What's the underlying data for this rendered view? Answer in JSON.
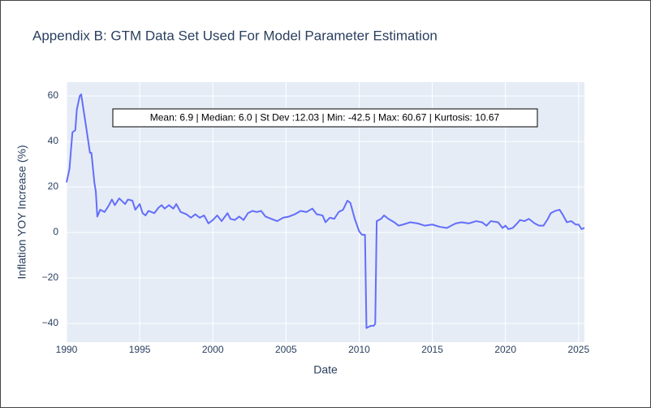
{
  "chart_data": {
    "type": "line",
    "title": "Appendix B: GTM Data Set Used For Model Parameter Estimation",
    "x_label": "Date",
    "y_label": "Inflation YOY Increase (%)",
    "annotation": "Mean: 6.9 | Median: 6.0 | St Dev :12.03 | Min: -42.5 | Max: 60.67 | Kurtosis: 10.67",
    "xlim": [
      1990,
      2025.4
    ],
    "ylim": [
      -48.2,
      66.1
    ],
    "xticks": [
      1990,
      1995,
      2000,
      2005,
      2010,
      2015,
      2020,
      2025
    ],
    "yticks": [
      {
        "value": -40,
        "label": "−40"
      },
      {
        "value": -20,
        "label": "−20"
      },
      0,
      20,
      40,
      60
    ],
    "grid": true,
    "series": [
      {
        "name": "Inflation YOY Increase (%)",
        "color": "#636efa",
        "x": [
          1990.0,
          1990.2,
          1990.4,
          1990.6,
          1990.7,
          1990.9,
          1991.0,
          1991.3,
          1991.6,
          1991.7,
          1991.9,
          1992.0,
          1992.1,
          1992.3,
          1992.6,
          1992.9,
          1993.1,
          1993.3,
          1993.6,
          1994.0,
          1994.2,
          1994.5,
          1994.7,
          1995.0,
          1995.2,
          1995.4,
          1995.6,
          1996.0,
          1996.3,
          1996.5,
          1996.7,
          1997.0,
          1997.3,
          1997.5,
          1997.8,
          1998.2,
          1998.5,
          1998.8,
          1999.1,
          1999.4,
          1999.7,
          2000.0,
          2000.3,
          2000.6,
          2001.0,
          2001.2,
          2001.5,
          2001.8,
          2002.1,
          2002.4,
          2002.7,
          2003.0,
          2003.3,
          2003.6,
          2004.0,
          2004.4,
          2004.8,
          2005.2,
          2005.6,
          2006.0,
          2006.4,
          2006.8,
          2007.1,
          2007.5,
          2007.7,
          2008.0,
          2008.3,
          2008.6,
          2008.9,
          2009.2,
          2009.4,
          2009.7,
          2010.0,
          2010.2,
          2010.4,
          2010.5,
          2010.8,
          2011.0,
          2011.1,
          2011.2,
          2011.5,
          2011.7,
          2012.0,
          2012.4,
          2012.7,
          2013.0,
          2013.5,
          2014.0,
          2014.5,
          2015.0,
          2015.5,
          2016.0,
          2016.3,
          2016.6,
          2017.0,
          2017.5,
          2018.0,
          2018.4,
          2018.7,
          2019.0,
          2019.5,
          2019.8,
          2020.0,
          2020.2,
          2020.5,
          2020.8,
          2021.0,
          2021.3,
          2021.6,
          2022.0,
          2022.3,
          2022.6,
          2022.9,
          2023.1,
          2023.4,
          2023.7,
          2023.9,
          2024.2,
          2024.5,
          2024.8,
          2025.0,
          2025.2,
          2025.4
        ],
        "values": [
          22,
          28,
          44,
          45,
          54,
          60,
          60.7,
          48,
          35,
          35,
          22,
          18,
          7,
          10,
          9,
          12,
          14.5,
          12,
          15,
          12.5,
          14.5,
          14,
          10,
          12.5,
          8.5,
          7.5,
          9.5,
          8.5,
          11,
          12,
          10.5,
          12,
          10.5,
          12.5,
          9,
          8,
          6.5,
          8,
          6.5,
          7.5,
          4,
          5.5,
          7.5,
          5,
          8.5,
          6,
          5.5,
          7,
          5.5,
          8.5,
          9.5,
          9,
          9.5,
          7,
          6,
          5,
          6.5,
          7,
          8,
          9.5,
          9,
          10.5,
          8,
          7.5,
          4.5,
          6.5,
          6,
          9,
          10,
          14,
          13,
          6,
          0.5,
          -1,
          -1,
          -42,
          -41,
          -41,
          -40,
          5,
          6,
          7.5,
          6,
          4.5,
          3,
          3.5,
          4.5,
          4,
          3,
          3.5,
          2.5,
          2,
          3,
          4,
          4.5,
          4,
          5,
          4.5,
          3,
          5,
          4.5,
          2,
          3,
          1.5,
          2,
          4,
          5.5,
          5,
          6,
          4,
          3,
          3,
          6,
          8.5,
          9.5,
          10,
          8,
          4.5,
          5,
          3.5,
          3.5,
          1.5,
          2
        ]
      }
    ]
  }
}
